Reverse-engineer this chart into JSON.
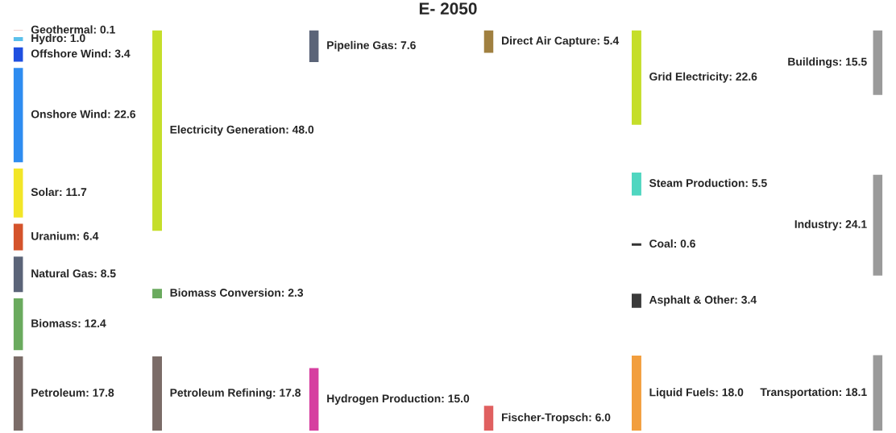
{
  "chart_data": [
    {
      "type": "other",
      "title": "E- 2050",
      "categories": [
        "Geothermal",
        "Hydro",
        "Offshore Wind",
        "Onshore Wind",
        "Solar",
        "Uranium",
        "Natural Gas",
        "Biomass",
        "Petroleum"
      ],
      "values": [
        0.1,
        1.0,
        3.4,
        22.6,
        11.7,
        6.4,
        8.5,
        12.4,
        17.8
      ],
      "value_labels": [
        ": 0.1",
        ": 1.0",
        ": 3.4",
        ": 22.6",
        ": 11.7",
        ": 6.4",
        ": 8.5",
        ": 12.4",
        ": 17.8"
      ],
      "colors": [
        "#c0392b",
        "#5bc0eb",
        "#1f4fe0",
        "#2e8cf0",
        "#f2e627",
        "#d4532b",
        "#5b6478",
        "#6aaa5e",
        "#7b6c68"
      ]
    },
    {
      "type": "other",
      "categories": [
        "Electricity Generation",
        "Biomass Conversion",
        "Petroleum Refining"
      ],
      "values": [
        48.0,
        2.3,
        17.8
      ],
      "value_labels": [
        ": 48.0",
        ": 2.3",
        ": 17.8"
      ],
      "colors": [
        "#c5de2a",
        "#6aaa5e",
        "#7b6c68"
      ]
    },
    {
      "type": "other",
      "categories": [
        "Pipeline Gas",
        "Hydrogen Production"
      ],
      "values": [
        7.6,
        15.0
      ],
      "value_labels": [
        ": 7.6",
        ": 15.0"
      ],
      "colors": [
        "#5b6478",
        "#d63fa0"
      ]
    },
    {
      "type": "other",
      "categories": [
        "Direct Air Capture",
        "Fischer-Tropsch"
      ],
      "values": [
        5.4,
        6.0
      ],
      "value_labels": [
        ": 5.4",
        ": 6.0"
      ],
      "colors": [
        "#a08040",
        "#e06060"
      ]
    },
    {
      "type": "other",
      "categories": [
        "Grid Electricity",
        "Steam Production",
        "Coal",
        "Asphalt & Other",
        "Liquid Fuels"
      ],
      "values": [
        22.6,
        5.5,
        0.6,
        3.4,
        18.0
      ],
      "value_labels": [
        ": 22.6",
        ": 5.5",
        ": 0.6",
        ": 3.4",
        ": 18.0"
      ],
      "colors": [
        "#c5de2a",
        "#4fd6c0",
        "#333333",
        "#3a3a3a",
        "#f29e3d"
      ]
    },
    {
      "type": "other",
      "categories": [
        "Buildings",
        "Industry",
        "Transportation"
      ],
      "values": [
        15.5,
        24.1,
        18.1
      ],
      "value_labels": [
        ": 15.5",
        ": 24.1",
        ": 18.1"
      ],
      "colors": [
        "#9a9a9a",
        "#9a9a9a",
        "#9a9a9a"
      ]
    }
  ]
}
